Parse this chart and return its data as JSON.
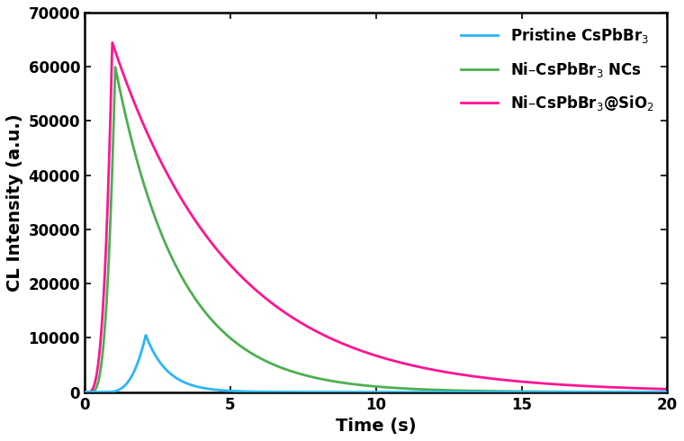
{
  "title": "",
  "xlabel": "Time (s)",
  "ylabel": "CL Intensity (a.u.)",
  "xlim": [
    0,
    20
  ],
  "ylim": [
    0,
    70000
  ],
  "xticks": [
    0,
    5,
    10,
    15,
    20
  ],
  "yticks": [
    0,
    10000,
    20000,
    30000,
    40000,
    50000,
    60000,
    70000
  ],
  "legend": [
    {
      "label": "Pristine CsPbBr$_3$",
      "color": "#29B6F6"
    },
    {
      "label": "Ni–CsPbBr$_3$ NCs",
      "color": "#4CAF50"
    },
    {
      "label": "Ni–CsPbBr$_3$@SiO$_2$",
      "color": "#FF1493"
    }
  ],
  "curves": {
    "blue": {
      "peak_time": 2.1,
      "peak_value": 10500,
      "rise_start": 0.7,
      "rise_k": 8.0,
      "decay_tau": 0.75,
      "color": "#29B6F6"
    },
    "green": {
      "peak_time": 1.05,
      "peak_value": 60000,
      "rise_start": 0.2,
      "rise_k": 12.0,
      "decay_tau": 2.2,
      "color": "#4CAF50"
    },
    "pink": {
      "peak_time": 0.95,
      "peak_value": 64500,
      "rise_start": 0.1,
      "rise_k": 15.0,
      "decay_tau": 4.0,
      "color": "#FF1493"
    }
  },
  "linewidth": 2.0,
  "background_color": "#ffffff",
  "spine_color": "#000000",
  "label_fontsize": 14,
  "tick_fontsize": 12,
  "legend_fontsize": 12
}
